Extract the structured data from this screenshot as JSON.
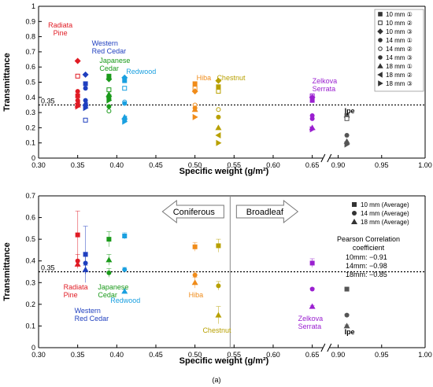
{
  "figure_label": "(a)",
  "chart_data": [
    {
      "type": "scatter",
      "title": "",
      "xlabel": "Specific weight (g/m²)",
      "ylabel": "Transmittance",
      "xlim": [
        0.3,
        1.0
      ],
      "x_axis_break": [
        0.65,
        0.9
      ],
      "ylim": [
        0,
        1.0
      ],
      "x_ticks": [
        "0.30",
        "0.35",
        "0.40",
        "0.45",
        "0.50",
        "0.55",
        "0.60",
        "0.65",
        "0.90",
        "0.95",
        "1.00"
      ],
      "y_ticks": [
        "0",
        "0.1",
        "0.2",
        "0.3",
        "0.4",
        "0.5",
        "0.6",
        "0.7",
        "0.8",
        "0.9",
        "1"
      ],
      "reference_line": {
        "y": 0.35,
        "label": "0.35"
      },
      "grid": false,
      "legend_placement": "top-right",
      "species_labels": [
        {
          "text": "Radiata\nPine",
          "color": "#e01b24"
        },
        {
          "text": "Western\nRed Cedar",
          "color": "#1f3fbf"
        },
        {
          "text": "Japanese\nCedar",
          "color": "#1a9a1a"
        },
        {
          "text": "Redwood",
          "color": "#1aa0e0"
        },
        {
          "text": "Hiba",
          "color": "#f08c1a"
        },
        {
          "text": "Chestnut",
          "color": "#b8a000"
        },
        {
          "text": "Zelkova\nSerrata",
          "color": "#9a1fd0"
        },
        {
          "text": "Ipe",
          "color": "#000000"
        }
      ],
      "legend_entries": [
        {
          "label": "10 mm ①",
          "marker": "square-filled"
        },
        {
          "label": "10 mm ②",
          "marker": "square-open"
        },
        {
          "label": "10 mm ③",
          "marker": "diamond-filled"
        },
        {
          "label": "14 mm ①",
          "marker": "circle-filled"
        },
        {
          "label": "14 mm ②",
          "marker": "circle-open"
        },
        {
          "label": "14 mm ③",
          "marker": "circle-filled"
        },
        {
          "label": "18 mm ①",
          "marker": "triangle-up"
        },
        {
          "label": "18 mm ②",
          "marker": "triangle-left"
        },
        {
          "label": "18 mm ③",
          "marker": "triangle-right"
        }
      ],
      "series": [
        {
          "species": "Radiata Pine",
          "color": "#e01b24",
          "points": [
            {
              "x": 0.35,
              "y": 0.64,
              "m": "diamond-filled"
            },
            {
              "x": 0.35,
              "y": 0.54,
              "m": "square-open"
            },
            {
              "x": 0.35,
              "y": 0.44,
              "m": "circle-filled"
            },
            {
              "x": 0.35,
              "y": 0.41,
              "m": "square-filled"
            },
            {
              "x": 0.35,
              "y": 0.38,
              "m": "circle-filled"
            },
            {
              "x": 0.35,
              "y": 0.36,
              "m": "triangle-left"
            },
            {
              "x": 0.35,
              "y": 0.35,
              "m": "triangle-up"
            },
            {
              "x": 0.35,
              "y": 0.34,
              "m": "triangle-right"
            }
          ]
        },
        {
          "species": "Western Red Cedar",
          "color": "#1f3fbf",
          "points": [
            {
              "x": 0.36,
              "y": 0.55,
              "m": "diamond-filled"
            },
            {
              "x": 0.36,
              "y": 0.49,
              "m": "square-filled"
            },
            {
              "x": 0.36,
              "y": 0.46,
              "m": "circle-filled"
            },
            {
              "x": 0.36,
              "y": 0.38,
              "m": "circle-filled"
            },
            {
              "x": 0.36,
              "y": 0.36,
              "m": "triangle-up"
            },
            {
              "x": 0.36,
              "y": 0.35,
              "m": "triangle-left"
            },
            {
              "x": 0.36,
              "y": 0.33,
              "m": "triangle-right"
            },
            {
              "x": 0.36,
              "y": 0.25,
              "m": "square-open"
            }
          ]
        },
        {
          "species": "Japanese Cedar",
          "color": "#1a9a1a",
          "points": [
            {
              "x": 0.39,
              "y": 0.54,
              "m": "square-filled"
            },
            {
              "x": 0.39,
              "y": 0.52,
              "m": "diamond-filled"
            },
            {
              "x": 0.39,
              "y": 0.45,
              "m": "square-open"
            },
            {
              "x": 0.39,
              "y": 0.42,
              "m": "triangle-up"
            },
            {
              "x": 0.39,
              "y": 0.4,
              "m": "triangle-left"
            },
            {
              "x": 0.39,
              "y": 0.38,
              "m": "triangle-right"
            },
            {
              "x": 0.39,
              "y": 0.34,
              "m": "circle-filled"
            },
            {
              "x": 0.39,
              "y": 0.31,
              "m": "circle-open"
            }
          ]
        },
        {
          "species": "Redwood",
          "color": "#1aa0e0",
          "points": [
            {
              "x": 0.41,
              "y": 0.53,
              "m": "diamond-filled"
            },
            {
              "x": 0.41,
              "y": 0.51,
              "m": "square-filled"
            },
            {
              "x": 0.41,
              "y": 0.46,
              "m": "square-open"
            },
            {
              "x": 0.41,
              "y": 0.37,
              "m": "circle-open"
            },
            {
              "x": 0.41,
              "y": 0.36,
              "m": "circle-filled"
            },
            {
              "x": 0.41,
              "y": 0.27,
              "m": "triangle-up"
            },
            {
              "x": 0.41,
              "y": 0.26,
              "m": "triangle-left"
            },
            {
              "x": 0.41,
              "y": 0.24,
              "m": "triangle-right"
            }
          ]
        },
        {
          "species": "Hiba",
          "color": "#f08c1a",
          "points": [
            {
              "x": 0.5,
              "y": 0.49,
              "m": "square-filled"
            },
            {
              "x": 0.5,
              "y": 0.46,
              "m": "square-open"
            },
            {
              "x": 0.5,
              "y": 0.44,
              "m": "diamond-filled"
            },
            {
              "x": 0.5,
              "y": 0.35,
              "m": "circle-open"
            },
            {
              "x": 0.5,
              "y": 0.33,
              "m": "circle-filled"
            },
            {
              "x": 0.5,
              "y": 0.32,
              "m": "triangle-up"
            },
            {
              "x": 0.5,
              "y": 0.27,
              "m": "triangle-right"
            }
          ]
        },
        {
          "species": "Chestnut",
          "color": "#b8a000",
          "points": [
            {
              "x": 0.53,
              "y": 0.51,
              "m": "diamond-filled"
            },
            {
              "x": 0.53,
              "y": 0.47,
              "m": "square-filled"
            },
            {
              "x": 0.53,
              "y": 0.44,
              "m": "square-open"
            },
            {
              "x": 0.53,
              "y": 0.32,
              "m": "circle-open"
            },
            {
              "x": 0.53,
              "y": 0.27,
              "m": "circle-filled"
            },
            {
              "x": 0.53,
              "y": 0.2,
              "m": "triangle-up"
            },
            {
              "x": 0.53,
              "y": 0.15,
              "m": "triangle-left"
            },
            {
              "x": 0.53,
              "y": 0.1,
              "m": "triangle-right"
            }
          ]
        },
        {
          "species": "Zelkova Serrata",
          "color": "#9a1fd0",
          "points": [
            {
              "x": 0.65,
              "y": 0.41,
              "m": "square-open"
            },
            {
              "x": 0.65,
              "y": 0.4,
              "m": "diamond-filled"
            },
            {
              "x": 0.65,
              "y": 0.38,
              "m": "square-filled"
            },
            {
              "x": 0.65,
              "y": 0.28,
              "m": "circle-filled"
            },
            {
              "x": 0.65,
              "y": 0.26,
              "m": "circle-filled"
            },
            {
              "x": 0.65,
              "y": 0.2,
              "m": "triangle-up"
            },
            {
              "x": 0.65,
              "y": 0.19,
              "m": "triangle-right"
            }
          ]
        },
        {
          "species": "Ipe",
          "color": "#555555",
          "points": [
            {
              "x": 0.91,
              "y": 0.28,
              "m": "square-filled"
            },
            {
              "x": 0.91,
              "y": 0.27,
              "m": "diamond-filled"
            },
            {
              "x": 0.91,
              "y": 0.26,
              "m": "square-open"
            },
            {
              "x": 0.91,
              "y": 0.15,
              "m": "circle-filled"
            },
            {
              "x": 0.91,
              "y": 0.1,
              "m": "circle-filled"
            },
            {
              "x": 0.91,
              "y": 0.11,
              "m": "triangle-up"
            },
            {
              "x": 0.91,
              "y": 0.09,
              "m": "triangle-right"
            }
          ]
        }
      ]
    },
    {
      "type": "scatter",
      "title": "",
      "xlabel": "Specific weight (g/m²)",
      "ylabel": "Transmittance",
      "xlim": [
        0.3,
        1.0
      ],
      "x_axis_break": [
        0.65,
        0.9
      ],
      "ylim": [
        0,
        0.7
      ],
      "x_ticks": [
        "0.30",
        "0.35",
        "0.40",
        "0.45",
        "0.50",
        "0.55",
        "0.60",
        "0.65",
        "0.90",
        "0.95",
        "1.00"
      ],
      "y_ticks": [
        "0",
        "0.1",
        "0.2",
        "0.3",
        "0.4",
        "0.5",
        "0.6",
        "0.7"
      ],
      "reference_line": {
        "y": 0.35,
        "label": "0.35"
      },
      "divider_x": 0.545,
      "grid": false,
      "legend_placement": "top-right",
      "arrows": [
        {
          "text": "Coniferous",
          "direction": "left"
        },
        {
          "text": "Broadleaf",
          "direction": "right"
        }
      ],
      "legend_entries": [
        {
          "label": "10 mm (Average)",
          "marker": "square-filled"
        },
        {
          "label": "14 mm (Average)",
          "marker": "circle-filled"
        },
        {
          "label": "18 mm (Average)",
          "marker": "triangle-up"
        }
      ],
      "correlation": {
        "title_line1": "Pearson Correlation",
        "title_line2": "coefficient",
        "lines": [
          "10mm: −0.91",
          "14mm: −0.98",
          "18mm: −0.85"
        ]
      },
      "species_labels": [
        {
          "text": "Radiata\nPine",
          "color": "#e01b24"
        },
        {
          "text": "Western\nRed Cedar",
          "color": "#1f3fbf"
        },
        {
          "text": "Japanese\nCedar",
          "color": "#1a9a1a"
        },
        {
          "text": "Redwood",
          "color": "#1aa0e0"
        },
        {
          "text": "Hiba",
          "color": "#f08c1a"
        },
        {
          "text": "Chestnut",
          "color": "#b8a000"
        },
        {
          "text": "Zelkova\nSerrata",
          "color": "#9a1fd0"
        },
        {
          "text": "Ipe",
          "color": "#000000"
        }
      ],
      "series": [
        {
          "species": "Radiata Pine",
          "color": "#e01b24",
          "points": [
            {
              "x": 0.35,
              "y": 0.52,
              "m": "square-filled",
              "err": 0.11
            },
            {
              "x": 0.35,
              "y": 0.4,
              "m": "circle-filled",
              "err": 0.03
            },
            {
              "x": 0.35,
              "y": 0.385,
              "m": "triangle-up",
              "err": 0.02
            }
          ]
        },
        {
          "species": "Western Red Cedar",
          "color": "#1f3fbf",
          "points": [
            {
              "x": 0.36,
              "y": 0.43,
              "m": "square-filled",
              "err": 0.13
            },
            {
              "x": 0.36,
              "y": 0.39,
              "m": "circle-filled",
              "err": 0.05
            },
            {
              "x": 0.36,
              "y": 0.36,
              "m": "triangle-up",
              "err": 0.02
            }
          ]
        },
        {
          "species": "Japanese Cedar",
          "color": "#1a9a1a",
          "points": [
            {
              "x": 0.39,
              "y": 0.5,
              "m": "square-filled",
              "err": 0.035
            },
            {
              "x": 0.39,
              "y": 0.405,
              "m": "triangle-up",
              "err": 0.025
            },
            {
              "x": 0.39,
              "y": 0.345,
              "m": "circle-filled",
              "err": 0.02
            }
          ]
        },
        {
          "species": "Redwood",
          "color": "#1aa0e0",
          "points": [
            {
              "x": 0.41,
              "y": 0.515,
              "m": "square-filled",
              "err": 0.015
            },
            {
              "x": 0.41,
              "y": 0.36,
              "m": "circle-filled",
              "err": 0.01
            },
            {
              "x": 0.41,
              "y": 0.26,
              "m": "triangle-up",
              "err": 0.01
            }
          ]
        },
        {
          "species": "Hiba",
          "color": "#f08c1a",
          "points": [
            {
              "x": 0.5,
              "y": 0.465,
              "m": "square-filled",
              "err": 0.02
            },
            {
              "x": 0.5,
              "y": 0.335,
              "m": "circle-filled",
              "err": 0.015
            },
            {
              "x": 0.5,
              "y": 0.3,
              "m": "triangle-up",
              "err": 0.025
            }
          ]
        },
        {
          "species": "Chestnut",
          "color": "#b8a000",
          "points": [
            {
              "x": 0.53,
              "y": 0.47,
              "m": "square-filled",
              "err": 0.03
            },
            {
              "x": 0.53,
              "y": 0.285,
              "m": "circle-filled",
              "err": 0.02
            },
            {
              "x": 0.53,
              "y": 0.15,
              "m": "triangle-up",
              "err": 0.04
            }
          ]
        },
        {
          "species": "Zelkova Serrata",
          "color": "#9a1fd0",
          "points": [
            {
              "x": 0.65,
              "y": 0.39,
              "m": "square-filled",
              "err": 0.02
            },
            {
              "x": 0.65,
              "y": 0.27,
              "m": "circle-filled",
              "err": 0.005
            },
            {
              "x": 0.65,
              "y": 0.19,
              "m": "triangle-up",
              "err": 0.005
            }
          ]
        },
        {
          "species": "Ipe",
          "color": "#555555",
          "points": [
            {
              "x": 0.91,
              "y": 0.27,
              "m": "square-filled",
              "err": 0.005
            },
            {
              "x": 0.91,
              "y": 0.15,
              "m": "circle-filled",
              "err": 0.005
            },
            {
              "x": 0.91,
              "y": 0.1,
              "m": "triangle-up",
              "err": 0.005
            }
          ]
        }
      ]
    }
  ]
}
